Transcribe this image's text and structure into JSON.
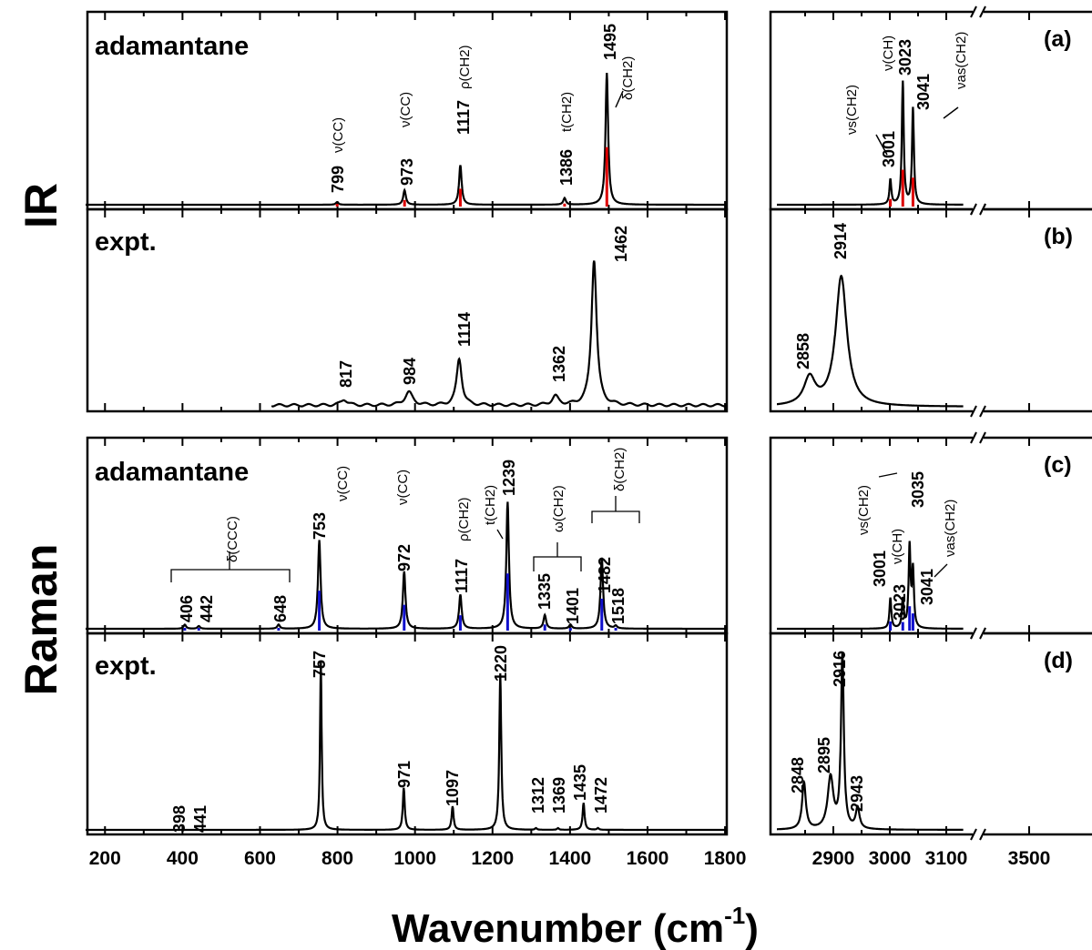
{
  "chart_data": {
    "type": "line",
    "x_axis_label": "Wavenumber (cm",
    "x_axis_label_sup": "-1",
    "x_axis_label_close": ")",
    "row_labels": [
      "IR",
      "Raman"
    ],
    "left_ticks": [
      "200",
      "400",
      "600",
      "800",
      "1000",
      "1200",
      "1400",
      "1600",
      "1800"
    ],
    "right_ticks": [
      "2900",
      "3000",
      "3100",
      "3500"
    ],
    "xlim_left": [
      150,
      1800
    ],
    "xlim_right_axis": [
      2800,
      3130
    ],
    "panels": [
      {
        "id": "a",
        "letter": "(a)",
        "name": "adamantane",
        "color": "#000000",
        "stick_color": "#dd0000",
        "left_peaks": [
          {
            "x": 799,
            "h": 0.02,
            "w": 4,
            "label": "799"
          },
          {
            "x": 973,
            "h": 0.11,
            "w": 4,
            "label": "973"
          },
          {
            "x": 1117,
            "h": 0.3,
            "w": 4,
            "label": "1117"
          },
          {
            "x": 1386,
            "h": 0.05,
            "w": 4,
            "label": "1386"
          },
          {
            "x": 1495,
            "h": 1.0,
            "w": 4,
            "label": "1495"
          }
        ],
        "right_peaks": [
          {
            "x": 3001,
            "h": 0.19,
            "w": 2,
            "label": "3001"
          },
          {
            "x": 3023,
            "h": 0.93,
            "w": 2,
            "label": "3023"
          },
          {
            "x": 3041,
            "h": 0.73,
            "w": 2,
            "label": "3041"
          }
        ],
        "annotations": [
          "ν(CC)",
          "ν(CC)",
          "ρ(CH",
          "t(CH",
          "δ(CH",
          "ν(CH)",
          "ν",
          "s",
          "(CH",
          "ν",
          "as",
          "(CH",
          "2",
          ")"
        ]
      },
      {
        "id": "b",
        "letter": "(b)",
        "name": "expt.",
        "color": "#000000",
        "left_peaks": [
          {
            "x": 817,
            "h": 0.04,
            "w": 10,
            "label": "817"
          },
          {
            "x": 984,
            "h": 0.09,
            "w": 12,
            "label": "984"
          },
          {
            "x": 1114,
            "h": 0.32,
            "w": 8,
            "label": "1114"
          },
          {
            "x": 1362,
            "h": 0.06,
            "w": 10,
            "label": "1362"
          },
          {
            "x": 1462,
            "h": 1.0,
            "w": 8,
            "label": "1462"
          }
        ],
        "right_peaks": [
          {
            "x": 2858,
            "h": 0.2,
            "w": 12,
            "label": "2858"
          },
          {
            "x": 2914,
            "h": 0.95,
            "w": 12,
            "label": "2914"
          }
        ]
      },
      {
        "id": "c",
        "letter": "(c)",
        "name": "adamantane",
        "color": "#000000",
        "stick_color": "#1010cc",
        "left_peaks": [
          {
            "x": 406,
            "h": 0.03,
            "w": 4,
            "label": "406"
          },
          {
            "x": 442,
            "h": 0.02,
            "w": 4,
            "label": "442"
          },
          {
            "x": 648,
            "h": 0.03,
            "w": 4,
            "label": "648"
          },
          {
            "x": 753,
            "h": 0.65,
            "w": 4,
            "label": "753"
          },
          {
            "x": 972,
            "h": 0.42,
            "w": 4,
            "label": "972"
          },
          {
            "x": 1117,
            "h": 0.25,
            "w": 4,
            "label": "1117"
          },
          {
            "x": 1239,
            "h": 0.93,
            "w": 4,
            "label": "1239"
          },
          {
            "x": 1335,
            "h": 0.1,
            "w": 4,
            "label": "1335"
          },
          {
            "x": 1401,
            "h": 0.03,
            "w": 4,
            "label": "1401"
          },
          {
            "x": 1482,
            "h": 0.52,
            "w": 4,
            "label": "1482"
          },
          {
            "x": 1518,
            "h": 0.02,
            "w": 4,
            "label": "1518"
          }
        ],
        "right_peaks": [
          {
            "x": 3001,
            "h": 0.32,
            "w": 2,
            "label": "3001"
          },
          {
            "x": 3023,
            "h": 0.3,
            "w": 2,
            "label": "3023"
          },
          {
            "x": 3035,
            "h": 0.85,
            "w": 2,
            "label": "3035"
          },
          {
            "x": 3041,
            "h": 0.6,
            "w": 2,
            "label": "3041"
          }
        ],
        "annotations": [
          "δ(CCC)",
          "ν(CC)",
          "ν(CC)",
          "ρ(CH",
          "t(CH",
          "ω(CH",
          "δ(CH",
          "ν(CH)",
          "ν",
          "s",
          "(CH",
          "ν",
          "as",
          "(CH",
          "2",
          ")"
        ]
      },
      {
        "id": "d",
        "letter": "(d)",
        "name": "expt.",
        "color": "#000000",
        "left_peaks": [
          {
            "x": 398,
            "h": 0.0,
            "w": 3,
            "label": "398"
          },
          {
            "x": 441,
            "h": 0.0,
            "w": 3,
            "label": "441"
          },
          {
            "x": 757,
            "h": 1.0,
            "w": 2.5,
            "label": "757"
          },
          {
            "x": 971,
            "h": 0.25,
            "w": 3,
            "label": "971"
          },
          {
            "x": 1097,
            "h": 0.14,
            "w": 3,
            "label": "1097"
          },
          {
            "x": 1220,
            "h": 0.93,
            "w": 3,
            "label": "1220"
          },
          {
            "x": 1312,
            "h": 0.01,
            "w": 3,
            "label": "1312"
          },
          {
            "x": 1369,
            "h": 0.01,
            "w": 3,
            "label": "1369"
          },
          {
            "x": 1435,
            "h": 0.16,
            "w": 3,
            "label": "1435"
          },
          {
            "x": 1472,
            "h": 0.01,
            "w": 3,
            "label": "1472"
          }
        ],
        "right_peaks": [
          {
            "x": 2848,
            "h": 0.27,
            "w": 4,
            "label": "2848"
          },
          {
            "x": 2895,
            "h": 0.3,
            "w": 6,
            "label": "2895"
          },
          {
            "x": 2916,
            "h": 1.0,
            "w": 3,
            "label": "2916"
          },
          {
            "x": 2943,
            "h": 0.12,
            "w": 4,
            "label": "2943"
          }
        ]
      }
    ]
  }
}
